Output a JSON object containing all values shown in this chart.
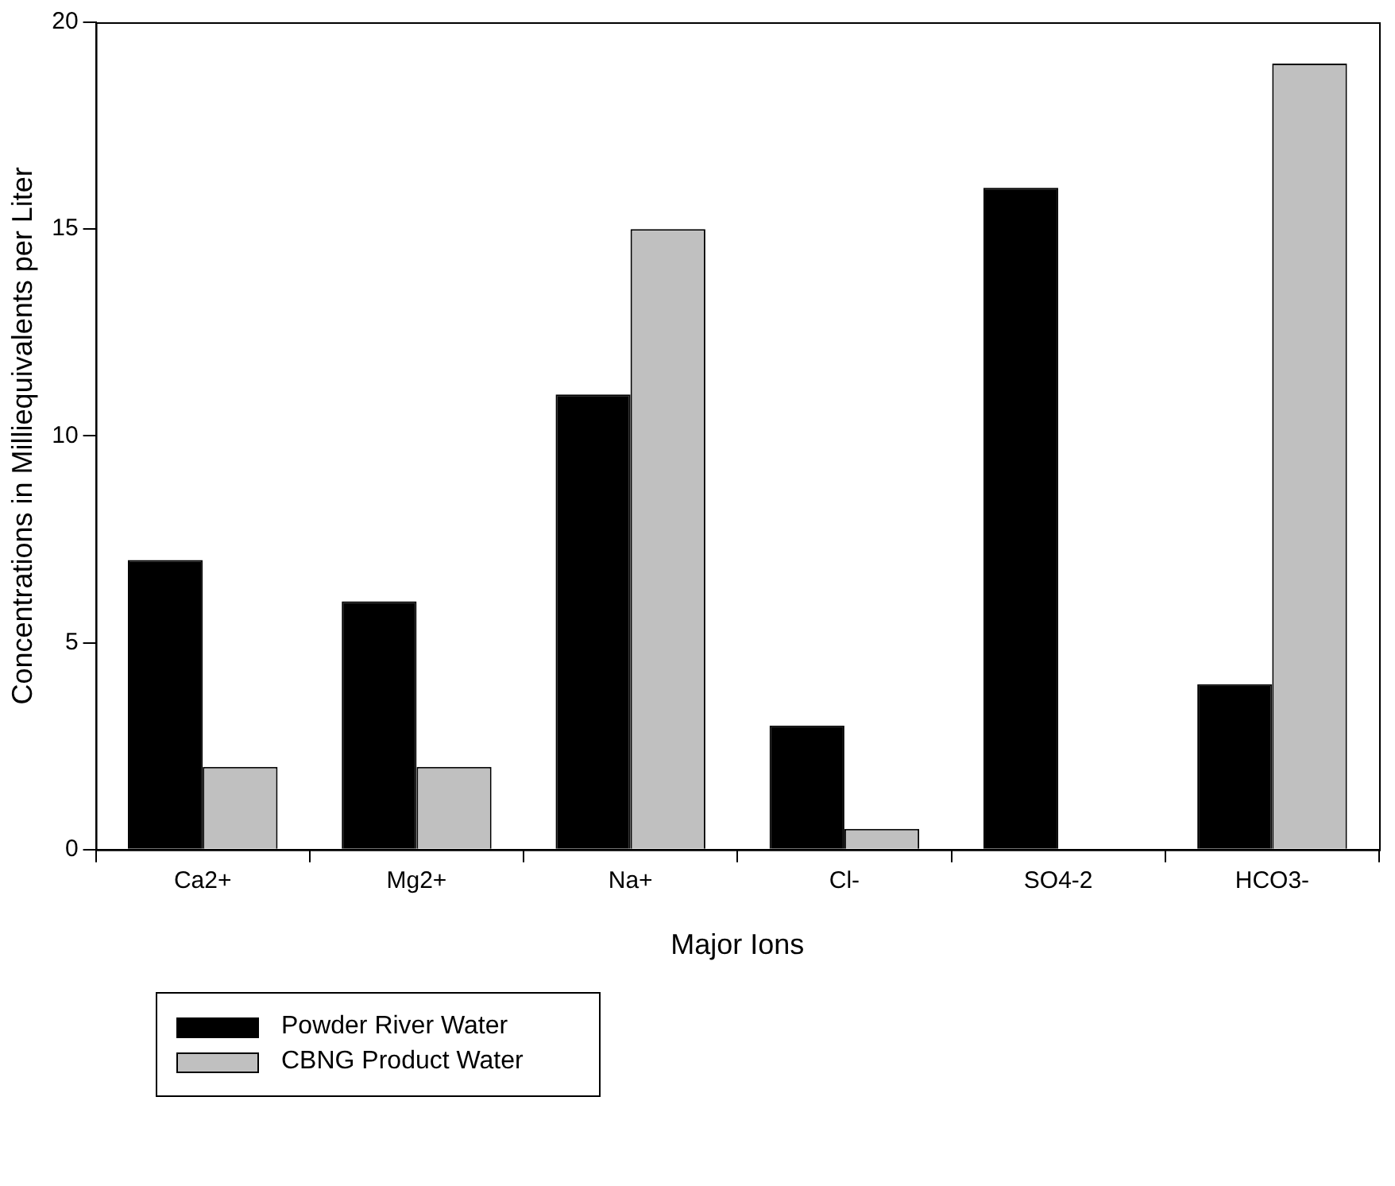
{
  "chart_data": {
    "type": "bar",
    "xlabel": "Major Ions",
    "ylabel": "Concentrations in Milliequivalents per Liter",
    "categories": [
      "Ca2+",
      "Mg2+",
      "Na+",
      "Cl-",
      "SO4-2",
      "HCO3-"
    ],
    "series": [
      {
        "name": "Powder River Water",
        "color": "#000000",
        "values": [
          7,
          6,
          11,
          3,
          16,
          4
        ]
      },
      {
        "name": "CBNG Product Water",
        "color": "#c0c0c0",
        "values": [
          2,
          2,
          15,
          0.5,
          null,
          19
        ]
      }
    ],
    "ylim": [
      0,
      20
    ],
    "yticks": [
      0,
      5,
      10,
      15,
      20
    ],
    "grid": false,
    "legend": "bottom left"
  }
}
